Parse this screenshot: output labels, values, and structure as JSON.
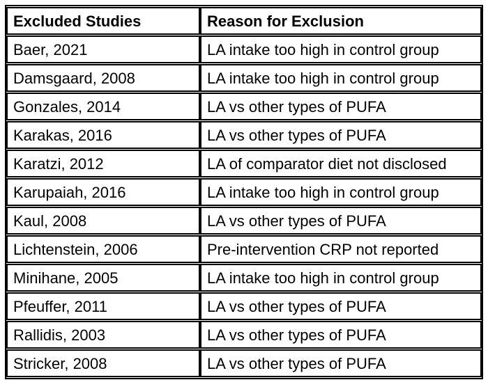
{
  "table": {
    "columns": [
      {
        "label": "Excluded Studies"
      },
      {
        "label": "Reason for Exclusion"
      }
    ],
    "rows": [
      {
        "study": "Baer, 2021",
        "reason": "LA intake too high in control group"
      },
      {
        "study": "Damsgaard, 2008",
        "reason": "LA intake too high in control group"
      },
      {
        "study": "Gonzales, 2014",
        "reason": "LA vs other types of PUFA"
      },
      {
        "study": "Karakas, 2016",
        "reason": "LA vs other types of PUFA"
      },
      {
        "study": "Karatzi, 2012",
        "reason": "LA of comparator diet not disclosed"
      },
      {
        "study": "Karupaiah, 2016",
        "reason": "LA intake too high in control group"
      },
      {
        "study": "Kaul, 2008",
        "reason": "LA vs other types of PUFA"
      },
      {
        "study": "Lichtenstein, 2006",
        "reason": "Pre-intervention CRP not reported"
      },
      {
        "study": "Minihane, 2005",
        "reason": "LA intake too high in control group"
      },
      {
        "study": "Pfeuffer, 2011",
        "reason": "LA vs other types of PUFA"
      },
      {
        "study": "Rallidis, 2003",
        "reason": "LA vs other types of PUFA"
      },
      {
        "study": "Stricker, 2008",
        "reason": "LA vs other types of PUFA"
      }
    ],
    "colors": {
      "border": "#000000",
      "text": "#000000",
      "background": "#ffffff"
    }
  }
}
